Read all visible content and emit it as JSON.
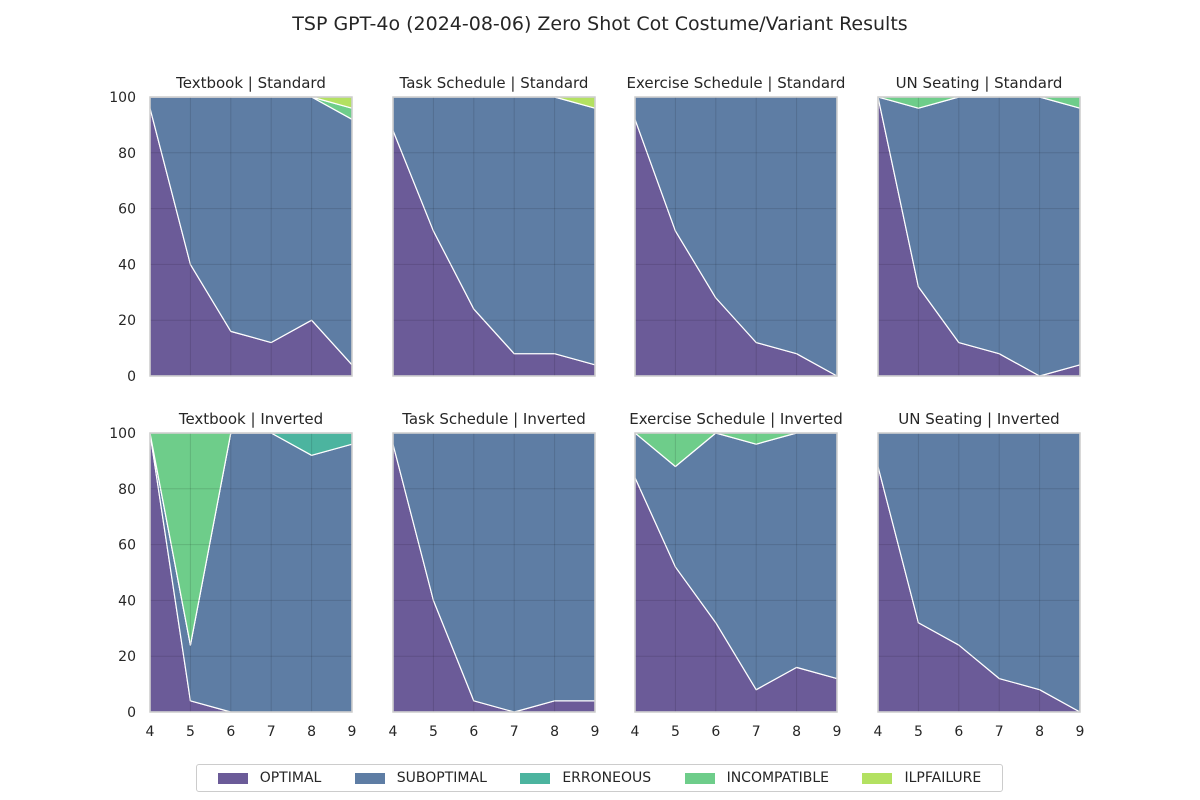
{
  "chart_data": {
    "type": "area",
    "title": "TSP GPT-4o (2024-08-06) Zero Shot Cot Costume/Variant Results",
    "x": [
      4,
      5,
      6,
      7,
      8,
      9
    ],
    "x_ticks": [
      "4",
      "5",
      "6",
      "7",
      "8",
      "9"
    ],
    "y_ticks": [
      "0",
      "20",
      "40",
      "60",
      "80",
      "100"
    ],
    "ylim": [
      0,
      100
    ],
    "grid": true,
    "stacked": true,
    "legend_position": "bottom-center",
    "series_names": [
      "OPTIMAL",
      "SUBOPTIMAL",
      "ERRONEOUS",
      "INCOMPATIBLE",
      "ILPFAILURE"
    ],
    "colors": {
      "OPTIMAL": "#46327e",
      "SUBOPTIMAL": "#365c8d",
      "ERRONEOUS": "#1fa187",
      "INCOMPATIBLE": "#4ac16d",
      "ILPFAILURE": "#a0da39"
    },
    "panels": [
      {
        "title": "Textbook | Standard",
        "row": 0,
        "col": 0,
        "series": [
          {
            "name": "OPTIMAL",
            "values": [
              96,
              40,
              16,
              12,
              20,
              4
            ]
          },
          {
            "name": "SUBOPTIMAL",
            "values": [
              4,
              60,
              84,
              88,
              80,
              88
            ]
          },
          {
            "name": "ERRONEOUS",
            "values": [
              0,
              0,
              0,
              0,
              0,
              0
            ]
          },
          {
            "name": "INCOMPATIBLE",
            "values": [
              0,
              0,
              0,
              0,
              0,
              4
            ]
          },
          {
            "name": "ILPFAILURE",
            "values": [
              0,
              0,
              0,
              0,
              0,
              4
            ]
          }
        ]
      },
      {
        "title": "Task Schedule | Standard",
        "row": 0,
        "col": 1,
        "series": [
          {
            "name": "OPTIMAL",
            "values": [
              88,
              52,
              24,
              8,
              8,
              4
            ]
          },
          {
            "name": "SUBOPTIMAL",
            "values": [
              12,
              48,
              76,
              92,
              92,
              92
            ]
          },
          {
            "name": "ERRONEOUS",
            "values": [
              0,
              0,
              0,
              0,
              0,
              0
            ]
          },
          {
            "name": "INCOMPATIBLE",
            "values": [
              0,
              0,
              0,
              0,
              0,
              0
            ]
          },
          {
            "name": "ILPFAILURE",
            "values": [
              0,
              0,
              0,
              0,
              0,
              4
            ]
          }
        ]
      },
      {
        "title": "Exercise Schedule | Standard",
        "row": 0,
        "col": 2,
        "series": [
          {
            "name": "OPTIMAL",
            "values": [
              92,
              52,
              28,
              12,
              8,
              0
            ]
          },
          {
            "name": "SUBOPTIMAL",
            "values": [
              8,
              48,
              72,
              88,
              92,
              100
            ]
          },
          {
            "name": "ERRONEOUS",
            "values": [
              0,
              0,
              0,
              0,
              0,
              0
            ]
          },
          {
            "name": "INCOMPATIBLE",
            "values": [
              0,
              0,
              0,
              0,
              0,
              0
            ]
          },
          {
            "name": "ILPFAILURE",
            "values": [
              0,
              0,
              0,
              0,
              0,
              0
            ]
          }
        ]
      },
      {
        "title": "UN Seating | Standard",
        "row": 0,
        "col": 3,
        "series": [
          {
            "name": "OPTIMAL",
            "values": [
              100,
              32,
              12,
              8,
              0,
              4
            ]
          },
          {
            "name": "SUBOPTIMAL",
            "values": [
              0,
              64,
              88,
              92,
              100,
              92
            ]
          },
          {
            "name": "ERRONEOUS",
            "values": [
              0,
              0,
              0,
              0,
              0,
              0
            ]
          },
          {
            "name": "INCOMPATIBLE",
            "values": [
              0,
              4,
              0,
              0,
              0,
              4
            ]
          },
          {
            "name": "ILPFAILURE",
            "values": [
              0,
              0,
              0,
              0,
              0,
              0
            ]
          }
        ]
      },
      {
        "title": "Textbook | Inverted",
        "row": 1,
        "col": 0,
        "series": [
          {
            "name": "OPTIMAL",
            "values": [
              100,
              4,
              0,
              0,
              0,
              0
            ]
          },
          {
            "name": "SUBOPTIMAL",
            "values": [
              0,
              20,
              100,
              100,
              92,
              96
            ]
          },
          {
            "name": "ERRONEOUS",
            "values": [
              0,
              0,
              0,
              0,
              8,
              4
            ]
          },
          {
            "name": "INCOMPATIBLE",
            "values": [
              0,
              76,
              0,
              0,
              0,
              0
            ]
          },
          {
            "name": "ILPFAILURE",
            "values": [
              0,
              0,
              0,
              0,
              0,
              0
            ]
          }
        ]
      },
      {
        "title": "Task Schedule | Inverted",
        "row": 1,
        "col": 1,
        "series": [
          {
            "name": "OPTIMAL",
            "values": [
              96,
              40,
              4,
              0,
              4,
              4
            ]
          },
          {
            "name": "SUBOPTIMAL",
            "values": [
              4,
              60,
              96,
              100,
              96,
              96
            ]
          },
          {
            "name": "ERRONEOUS",
            "values": [
              0,
              0,
              0,
              0,
              0,
              0
            ]
          },
          {
            "name": "INCOMPATIBLE",
            "values": [
              0,
              0,
              0,
              0,
              0,
              0
            ]
          },
          {
            "name": "ILPFAILURE",
            "values": [
              0,
              0,
              0,
              0,
              0,
              0
            ]
          }
        ]
      },
      {
        "title": "Exercise Schedule | Inverted",
        "row": 1,
        "col": 2,
        "series": [
          {
            "name": "OPTIMAL",
            "values": [
              84,
              52,
              32,
              8,
              16,
              12
            ]
          },
          {
            "name": "SUBOPTIMAL",
            "values": [
              16,
              36,
              68,
              88,
              84,
              88
            ]
          },
          {
            "name": "ERRONEOUS",
            "values": [
              0,
              0,
              0,
              0,
              0,
              0
            ]
          },
          {
            "name": "INCOMPATIBLE",
            "values": [
              0,
              12,
              0,
              4,
              0,
              0
            ]
          },
          {
            "name": "ILPFAILURE",
            "values": [
              0,
              0,
              0,
              0,
              0,
              0
            ]
          }
        ]
      },
      {
        "title": "UN Seating | Inverted",
        "row": 1,
        "col": 3,
        "series": [
          {
            "name": "OPTIMAL",
            "values": [
              88,
              32,
              24,
              12,
              8,
              0
            ]
          },
          {
            "name": "SUBOPTIMAL",
            "values": [
              12,
              68,
              76,
              88,
              92,
              100
            ]
          },
          {
            "name": "ERRONEOUS",
            "values": [
              0,
              0,
              0,
              0,
              0,
              0
            ]
          },
          {
            "name": "INCOMPATIBLE",
            "values": [
              0,
              0,
              0,
              0,
              0,
              0
            ]
          },
          {
            "name": "ILPFAILURE",
            "values": [
              0,
              0,
              0,
              0,
              0,
              0
            ]
          }
        ]
      }
    ]
  }
}
